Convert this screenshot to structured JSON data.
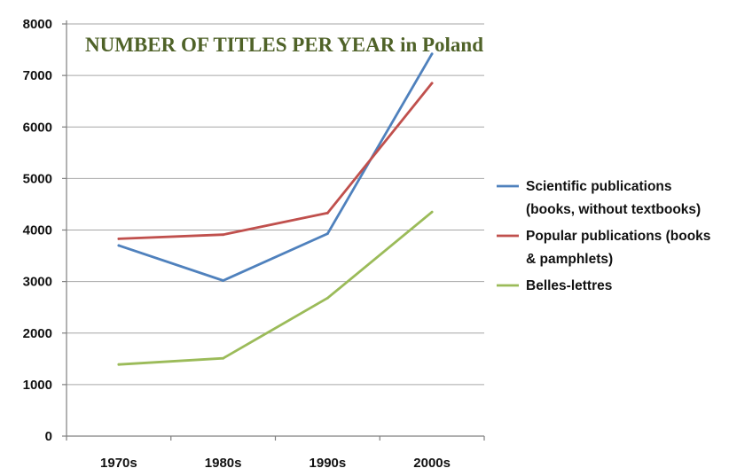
{
  "chart_data": {
    "type": "line",
    "title": "NUMBER OF TITLES PER YEAR in Poland",
    "categories": [
      "1970s",
      "1980s",
      "1990s",
      "2000s"
    ],
    "y_ticks": [
      "0",
      "1000",
      "2000",
      "3000",
      "4000",
      "5000",
      "6000",
      "7000",
      "8000"
    ],
    "ylim": [
      0,
      8000
    ],
    "grid": true,
    "legend_position": "right",
    "series": [
      {
        "name": "Scientific publications (books, without textbooks)",
        "legend_lines": [
          "Scientific publications",
          "(books, without textbooks)"
        ],
        "color": "#4f81bd",
        "values": [
          3700,
          3020,
          3930,
          7420
        ]
      },
      {
        "name": "Popular publications (books & pamphlets)",
        "legend_lines": [
          "Popular publications (books",
          "& pamphlets)"
        ],
        "color": "#c0504d",
        "values": [
          3830,
          3910,
          4330,
          6850
        ]
      },
      {
        "name": "Belles-lettres",
        "legend_lines": [
          "Belles-lettres"
        ],
        "color": "#9bbb59",
        "values": [
          1390,
          1510,
          2680,
          4350
        ]
      }
    ]
  },
  "style": {
    "title_color": "#4f6228",
    "grid_color": "#a6a6a6"
  }
}
